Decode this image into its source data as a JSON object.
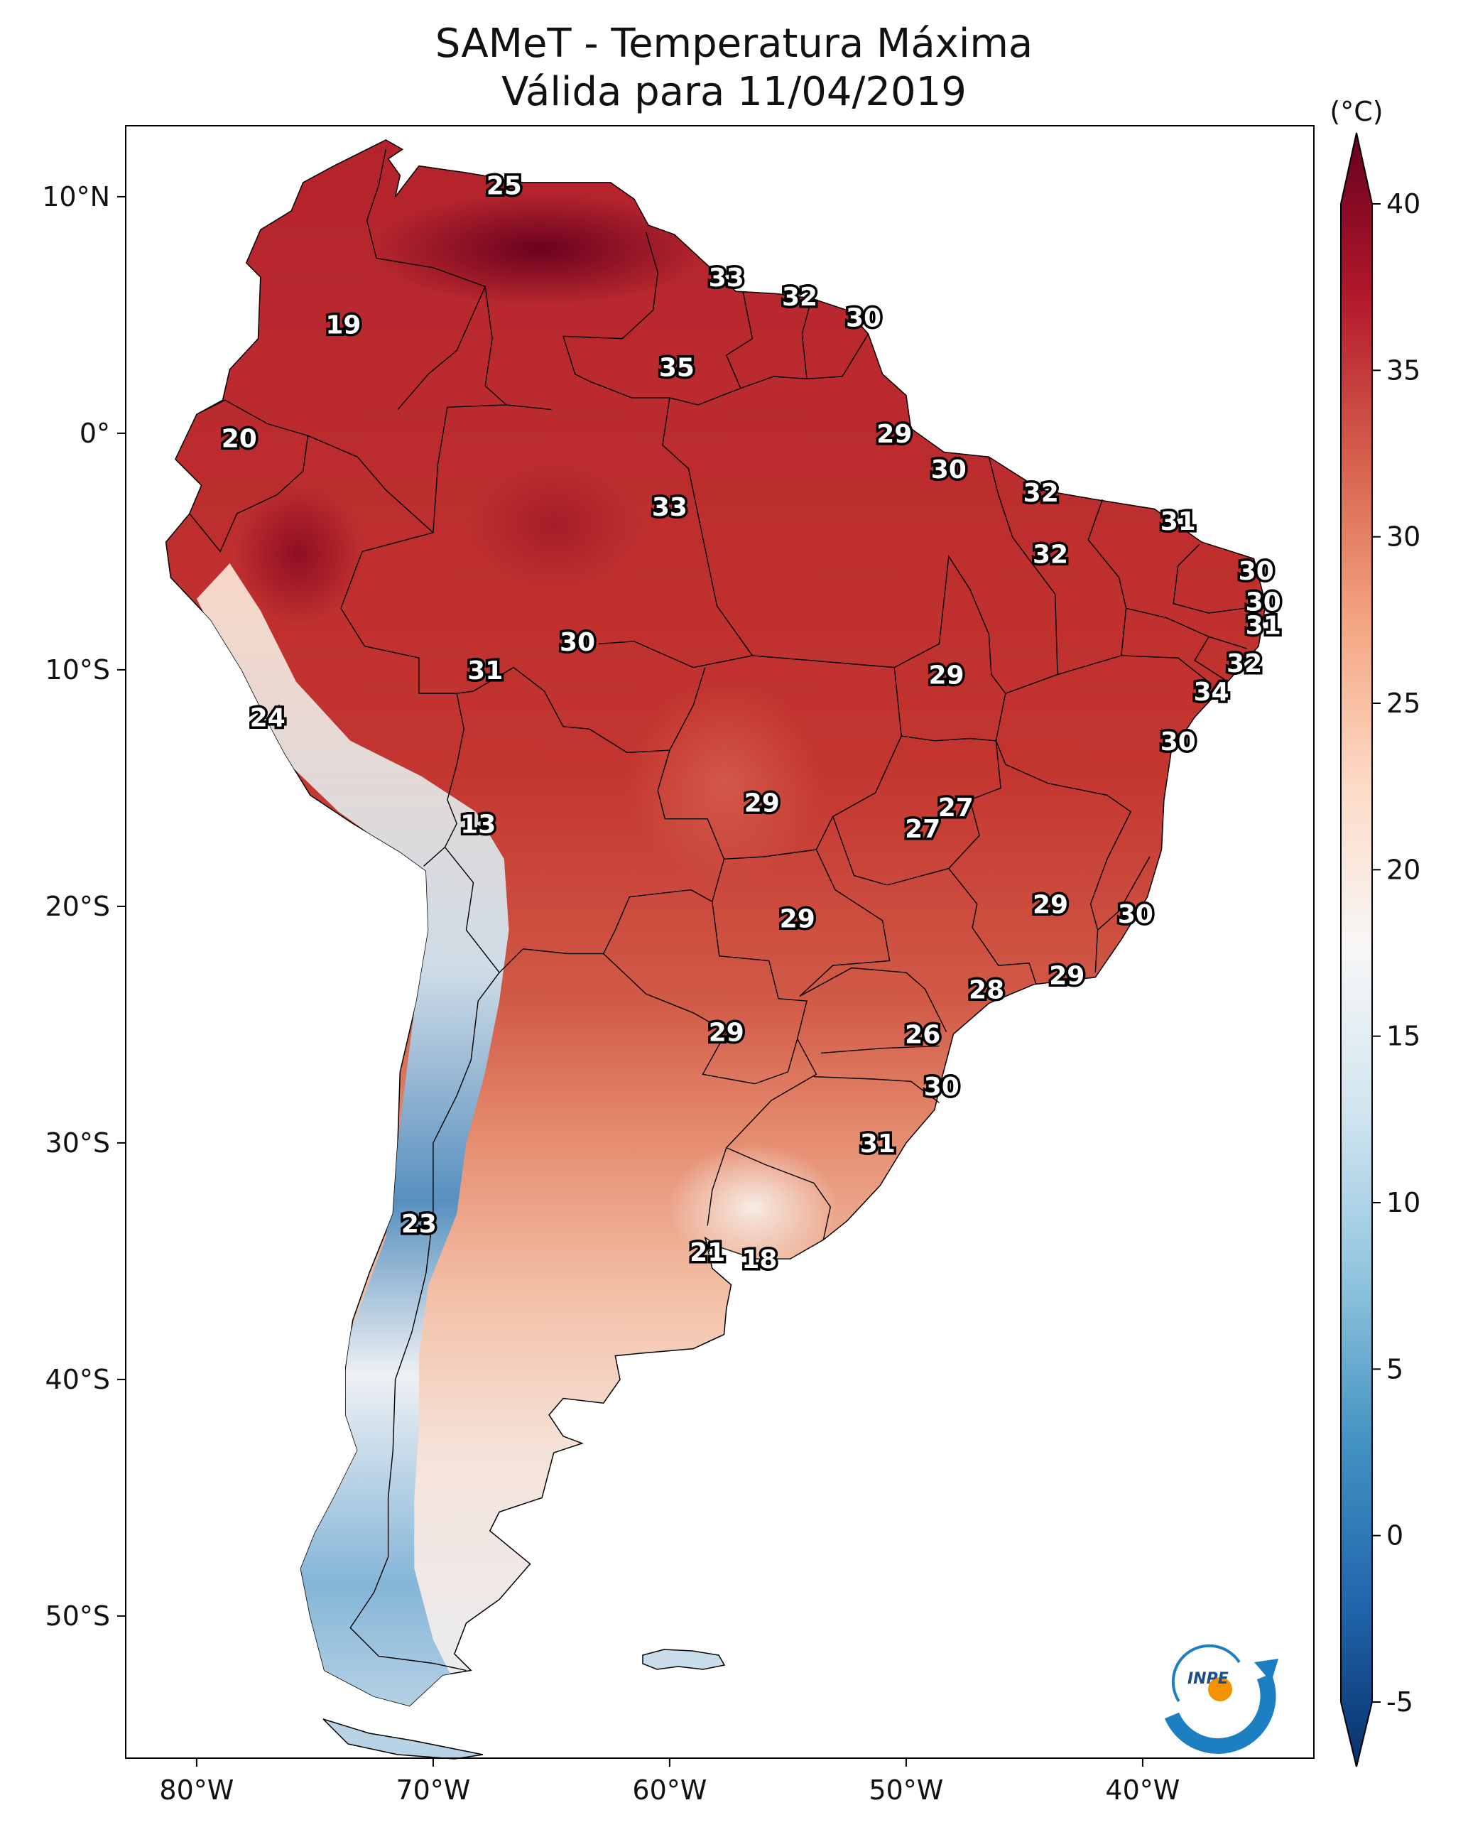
{
  "title": "SAMeT - Temperatura Máxima",
  "subtitle": "Válida para 11/04/2019",
  "colorbar": {
    "unit": "(°C)",
    "ticks": [
      "40",
      "35",
      "30",
      "25",
      "20",
      "15",
      "10",
      "5",
      "0",
      "-5"
    ],
    "range": [
      -5,
      40
    ],
    "extend": "both",
    "colors": [
      "#08306b",
      "#2166ac",
      "#4393c3",
      "#92c5de",
      "#d1e5f0",
      "#f7f7f7",
      "#fddbc7",
      "#f4a582",
      "#d6604d",
      "#b2182b",
      "#67001f"
    ]
  },
  "axes": {
    "lon_ticks": [
      "80°W",
      "70°W",
      "60°W",
      "50°W",
      "40°W"
    ],
    "lat_ticks": [
      "10°N",
      "0°",
      "10°S",
      "20°S",
      "30°S",
      "40°S",
      "50°S"
    ]
  },
  "logo": {
    "text": "INPE"
  },
  "city_labels": [
    "25",
    "33",
    "32",
    "30",
    "19",
    "35",
    "20",
    "29",
    "30",
    "32",
    "33",
    "31",
    "32",
    "30",
    "30",
    "31",
    "30",
    "31",
    "29",
    "32",
    "24",
    "34",
    "30",
    "13",
    "29",
    "27",
    "27",
    "29",
    "30",
    "29",
    "28",
    "29",
    "29",
    "26",
    "30",
    "31",
    "23",
    "21",
    "18"
  ],
  "chart_data": {
    "type": "heatmap",
    "variable": "Temperatura Máxima",
    "unit": "°C",
    "date": "11/04/2019",
    "color_range": [
      -5,
      40
    ],
    "points": [
      {
        "lon": -67.0,
        "lat": 10.5,
        "value": 25
      },
      {
        "lon": -57.6,
        "lat": 6.6,
        "value": 33
      },
      {
        "lon": -54.5,
        "lat": 5.8,
        "value": 32
      },
      {
        "lon": -51.8,
        "lat": 4.9,
        "value": 30
      },
      {
        "lon": -73.8,
        "lat": 4.6,
        "value": 19
      },
      {
        "lon": -59.7,
        "lat": 2.8,
        "value": 35
      },
      {
        "lon": -78.2,
        "lat": -0.2,
        "value": 20
      },
      {
        "lon": -50.5,
        "lat": 0.0,
        "value": 29
      },
      {
        "lon": -48.2,
        "lat": -1.5,
        "value": 30
      },
      {
        "lon": -44.3,
        "lat": -2.5,
        "value": 32
      },
      {
        "lon": -60.0,
        "lat": -3.1,
        "value": 33
      },
      {
        "lon": -38.5,
        "lat": -3.7,
        "value": 31
      },
      {
        "lon": -43.9,
        "lat": -5.1,
        "value": 32
      },
      {
        "lon": -35.2,
        "lat": -5.8,
        "value": 30
      },
      {
        "lon": -34.9,
        "lat": -7.1,
        "value": 30
      },
      {
        "lon": -34.9,
        "lat": -8.1,
        "value": 31
      },
      {
        "lon": -63.9,
        "lat": -8.8,
        "value": 30
      },
      {
        "lon": -67.8,
        "lat": -10.0,
        "value": 31
      },
      {
        "lon": -48.3,
        "lat": -10.2,
        "value": 29
      },
      {
        "lon": -35.7,
        "lat": -9.7,
        "value": 32
      },
      {
        "lon": -77.0,
        "lat": -12.0,
        "value": 24
      },
      {
        "lon": -37.1,
        "lat": -10.9,
        "value": 34
      },
      {
        "lon": -38.5,
        "lat": -13.0,
        "value": 30
      },
      {
        "lon": -68.1,
        "lat": -16.5,
        "value": 13
      },
      {
        "lon": -56.1,
        "lat": -15.6,
        "value": 29
      },
      {
        "lon": -47.9,
        "lat": -15.8,
        "value": 27
      },
      {
        "lon": -49.3,
        "lat": -16.7,
        "value": 27
      },
      {
        "lon": -43.9,
        "lat": -19.9,
        "value": 29
      },
      {
        "lon": -40.3,
        "lat": -20.3,
        "value": 30
      },
      {
        "lon": -54.6,
        "lat": -20.5,
        "value": 29
      },
      {
        "lon": -46.6,
        "lat": -23.5,
        "value": 28
      },
      {
        "lon": -43.2,
        "lat": -22.9,
        "value": 29
      },
      {
        "lon": -57.6,
        "lat": -25.3,
        "value": 29
      },
      {
        "lon": -49.3,
        "lat": -25.4,
        "value": 26
      },
      {
        "lon": -48.5,
        "lat": -27.6,
        "value": 30
      },
      {
        "lon": -51.2,
        "lat": -30.0,
        "value": 31
      },
      {
        "lon": -70.6,
        "lat": -33.4,
        "value": 23
      },
      {
        "lon": -58.4,
        "lat": -34.6,
        "value": 21
      },
      {
        "lon": -56.2,
        "lat": -34.9,
        "value": 18
      }
    ]
  }
}
